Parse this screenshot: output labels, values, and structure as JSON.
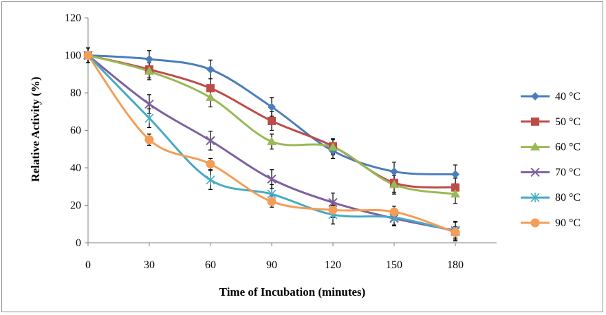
{
  "chart_data": {
    "type": "line",
    "xlabel": "Time of Incubation (minutes)",
    "ylabel": "Relative Activity (%)",
    "x": [
      0,
      30,
      60,
      90,
      120,
      150,
      180
    ],
    "x_ticks": [
      "0",
      "30",
      "60",
      "90",
      "120",
      "150",
      "180"
    ],
    "y_ticks": [
      "0",
      "20",
      "40",
      "60",
      "80",
      "100",
      "120"
    ],
    "xlim": [
      0,
      180
    ],
    "ylim": [
      0,
      120
    ],
    "grid": false,
    "legend_position": "right",
    "smooth": true,
    "error_bars": true,
    "series": [
      {
        "name": "40 °C",
        "color": "#4A7EBB",
        "marker": "diamond",
        "values": [
          100,
          98,
          92.5,
          72.5,
          49,
          38,
          36.5
        ],
        "errors": [
          4,
          4.5,
          5,
          5,
          4,
          5,
          5
        ]
      },
      {
        "name": "50 °C",
        "color": "#BE4B48",
        "marker": "square",
        "values": [
          100,
          92.5,
          82.5,
          65,
          51.5,
          32,
          29.5
        ],
        "errors": [
          4,
          4.5,
          5,
          5,
          4,
          5,
          5
        ]
      },
      {
        "name": "60 °C",
        "color": "#98B954",
        "marker": "triangle",
        "values": [
          100,
          91.5,
          77.5,
          54,
          51,
          31,
          26
        ],
        "errors": [
          4,
          4.5,
          5,
          4,
          4,
          5,
          5
        ]
      },
      {
        "name": "70 °C",
        "color": "#7D60A0",
        "marker": "x",
        "values": [
          100,
          74,
          54.5,
          34,
          21.5,
          13,
          6.5
        ],
        "errors": [
          4,
          5,
          5,
          5,
          5,
          4,
          5
        ]
      },
      {
        "name": "80 °C",
        "color": "#46AAC5",
        "marker": "star",
        "values": [
          100,
          66.5,
          33.5,
          26,
          15,
          13.5,
          6
        ],
        "errors": [
          4,
          5,
          5,
          5,
          5,
          4,
          5
        ]
      },
      {
        "name": "90 °C",
        "color": "#F59D56",
        "marker": "circle",
        "values": [
          100,
          55,
          42,
          22,
          17.5,
          16.5,
          5.5
        ],
        "errors": [
          4,
          3,
          3,
          3,
          4,
          3,
          3
        ]
      }
    ]
  }
}
